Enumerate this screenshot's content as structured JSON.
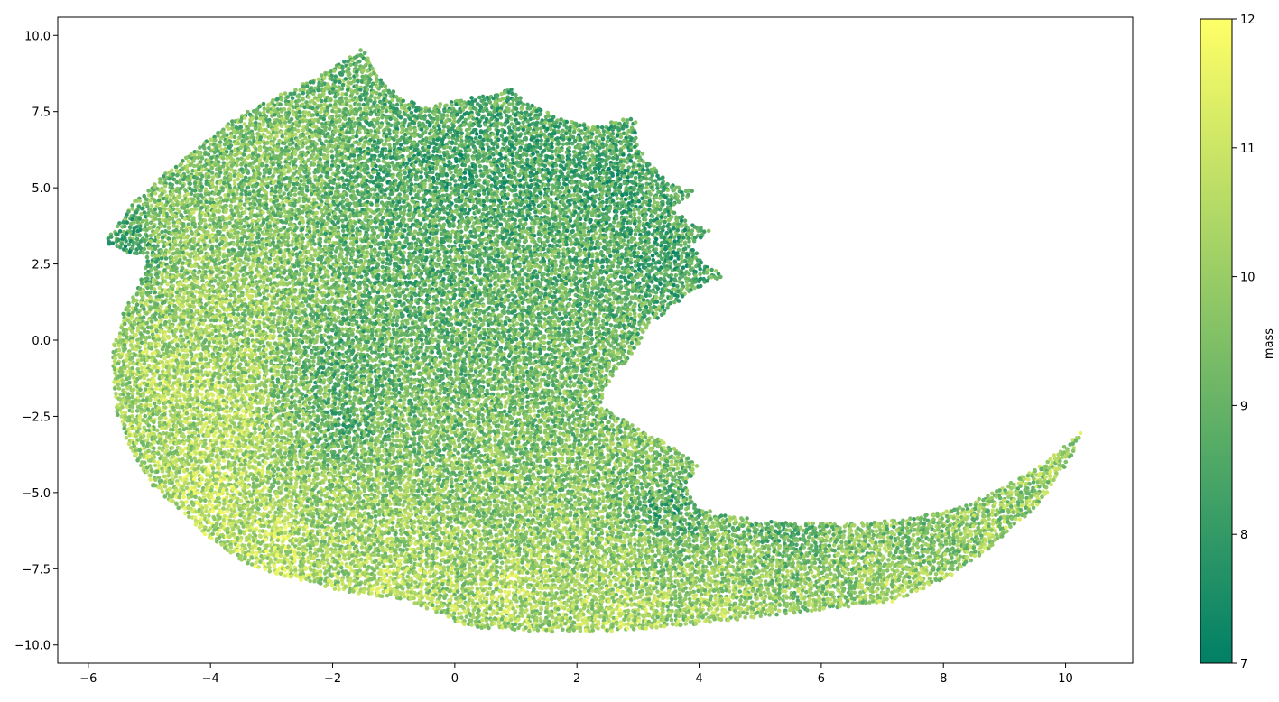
{
  "chart_data": {
    "type": "scatter",
    "title": "",
    "xlabel": "",
    "ylabel": "",
    "xlim": [
      -6.5,
      11.1
    ],
    "ylim": [
      -10.6,
      10.6
    ],
    "xticks": [
      -6,
      -4,
      -2,
      0,
      2,
      4,
      6,
      8,
      10
    ],
    "yticks": [
      -10.0,
      -7.5,
      -5.0,
      -2.5,
      0.0,
      2.5,
      5.0,
      7.5,
      10.0
    ],
    "xtick_labels": [
      "−6",
      "−4",
      "−2",
      "0",
      "2",
      "4",
      "6",
      "8",
      "10"
    ],
    "ytick_labels": [
      "−10.0",
      "−7.5",
      "−5.0",
      "−2.5",
      "0.0",
      "2.5",
      "5.0",
      "7.5",
      "10.0"
    ],
    "grid": false,
    "colormap": "summer",
    "colormap_stops": [
      "#008066",
      "#ffff66"
    ],
    "colorbar": {
      "label": "mass",
      "range": [
        7,
        12
      ],
      "ticks": [
        7,
        8,
        9,
        10,
        11,
        12
      ],
      "tick_labels": [
        "7",
        "8",
        "9",
        "10",
        "11",
        "12"
      ]
    },
    "series": [
      {
        "clusters": [
          {
            "x": -1.2,
            "y": 5.6,
            "mass": 8.4
          },
          {
            "x": 0.1,
            "y": 5.8,
            "mass": 8.2
          },
          {
            "x": 1.2,
            "y": 5.0,
            "mass": 8.3
          },
          {
            "x": 2.6,
            "y": 5.0,
            "mass": 8.3
          },
          {
            "x": 3.4,
            "y": 2.8,
            "mass": 8.2
          },
          {
            "x": -2.8,
            "y": 6.4,
            "mass": 9.6
          },
          {
            "x": -2.0,
            "y": 8.2,
            "mass": 9.2
          },
          {
            "x": -4.5,
            "y": 3.8,
            "mass": 9.9
          },
          {
            "x": -5.3,
            "y": 3.2,
            "mass": 8.0
          },
          {
            "x": -4.3,
            "y": 1.5,
            "mass": 10.3
          },
          {
            "x": -4.7,
            "y": -1.0,
            "mass": 10.6
          },
          {
            "x": -3.6,
            "y": -2.5,
            "mass": 10.7
          },
          {
            "x": -3.2,
            "y": 0.5,
            "mass": 10.2
          },
          {
            "x": -2.0,
            "y": -0.5,
            "mass": 8.5
          },
          {
            "x": -1.8,
            "y": -2.8,
            "mass": 8.4
          },
          {
            "x": -0.5,
            "y": 1.5,
            "mass": 8.7
          },
          {
            "x": 0.5,
            "y": -1.0,
            "mass": 9.1
          },
          {
            "x": 1.8,
            "y": 0.8,
            "mass": 9.0
          },
          {
            "x": 2.0,
            "y": -2.5,
            "mass": 9.4
          },
          {
            "x": -4.0,
            "y": -4.8,
            "mass": 10.9
          },
          {
            "x": -3.0,
            "y": -7.0,
            "mass": 11.0
          },
          {
            "x": -1.5,
            "y": -5.0,
            "mass": 10.1
          },
          {
            "x": -1.0,
            "y": -7.8,
            "mass": 10.7
          },
          {
            "x": 0.5,
            "y": -4.5,
            "mass": 9.6
          },
          {
            "x": 1.0,
            "y": -8.2,
            "mass": 10.6
          },
          {
            "x": 2.5,
            "y": -7.0,
            "mass": 10.2
          },
          {
            "x": 2.8,
            "y": -9.0,
            "mass": 10.7
          },
          {
            "x": 3.2,
            "y": -3.8,
            "mass": 9.9
          },
          {
            "x": 3.5,
            "y": -5.5,
            "mass": 8.0
          },
          {
            "x": 4.5,
            "y": -7.2,
            "mass": 9.8
          },
          {
            "x": 4.3,
            "y": -8.8,
            "mass": 10.5
          },
          {
            "x": 5.5,
            "y": -6.3,
            "mass": 8.3
          },
          {
            "x": 6.0,
            "y": -7.8,
            "mass": 9.9
          },
          {
            "x": 7.5,
            "y": -6.5,
            "mass": 9.2
          },
          {
            "x": 7.2,
            "y": -8.2,
            "mass": 10.6
          },
          {
            "x": 8.8,
            "y": -5.5,
            "mass": 9.6
          },
          {
            "x": 9.2,
            "y": -6.5,
            "mass": 10.6
          },
          {
            "x": 10.2,
            "y": -3.0,
            "mass": 10.3
          }
        ]
      }
    ]
  }
}
